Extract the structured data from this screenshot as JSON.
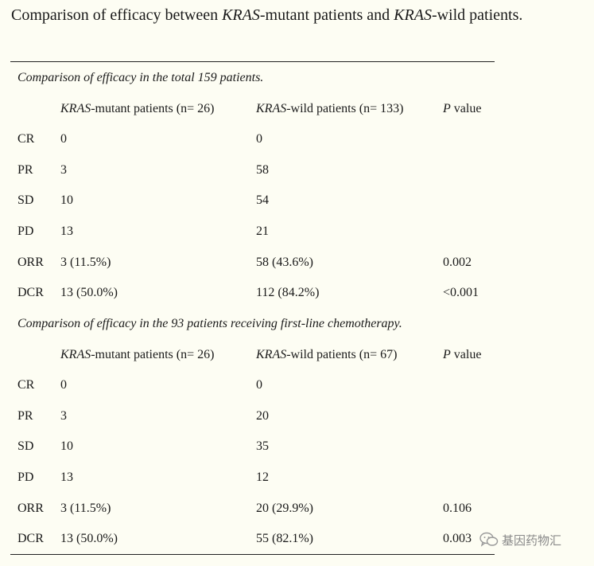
{
  "title": {
    "pre": "Comparison of efficacy between ",
    "kras1": "KRAS",
    "mid": "-mutant patients and ",
    "kras2": "KRAS",
    "post": "-wild patients."
  },
  "sections": [
    {
      "caption": "Comparison of efficacy in the total 159 patients.",
      "header": {
        "mutant_italic": "KRAS",
        "mutant_rest": "-mutant patients (n= 26)",
        "wild_italic": "KRAS",
        "wild_rest": "-wild patients (n= 133)",
        "p_italic": "P",
        "p_rest": " value"
      },
      "rows": [
        {
          "label": "CR",
          "mutant": "0",
          "wild": "0",
          "p": ""
        },
        {
          "label": "PR",
          "mutant": "3",
          "wild": "58",
          "p": ""
        },
        {
          "label": "SD",
          "mutant": "10",
          "wild": "54",
          "p": ""
        },
        {
          "label": "PD",
          "mutant": "13",
          "wild": "21",
          "p": ""
        },
        {
          "label": "ORR",
          "mutant": "3 (11.5%)",
          "wild": "58 (43.6%)",
          "p": "0.002"
        },
        {
          "label": "DCR",
          "mutant": "13 (50.0%)",
          "wild": "112 (84.2%)",
          "p": "<0.001"
        }
      ]
    },
    {
      "caption": "Comparison of efficacy in the 93 patients receiving first-line chemotherapy.",
      "header": {
        "mutant_italic": "KRAS",
        "mutant_rest": "-mutant patients (n= 26)",
        "wild_italic": "KRAS",
        "wild_rest": "-wild patients (n= 67)",
        "p_italic": "P",
        "p_rest": " value"
      },
      "rows": [
        {
          "label": "CR",
          "mutant": "0",
          "wild": "0",
          "p": ""
        },
        {
          "label": "PR",
          "mutant": "3",
          "wild": "20",
          "p": ""
        },
        {
          "label": "SD",
          "mutant": "10",
          "wild": "35",
          "p": ""
        },
        {
          "label": "PD",
          "mutant": "13",
          "wild": "12",
          "p": ""
        },
        {
          "label": "ORR",
          "mutant": "3 (11.5%)",
          "wild": "20 (29.9%)",
          "p": "0.106"
        },
        {
          "label": "DCR",
          "mutant": "13 (50.0%)",
          "wild": "55 (82.1%)",
          "p": "0.003"
        }
      ]
    }
  ],
  "watermark": {
    "text": "基因药物汇",
    "icon": "wechat-icon"
  }
}
